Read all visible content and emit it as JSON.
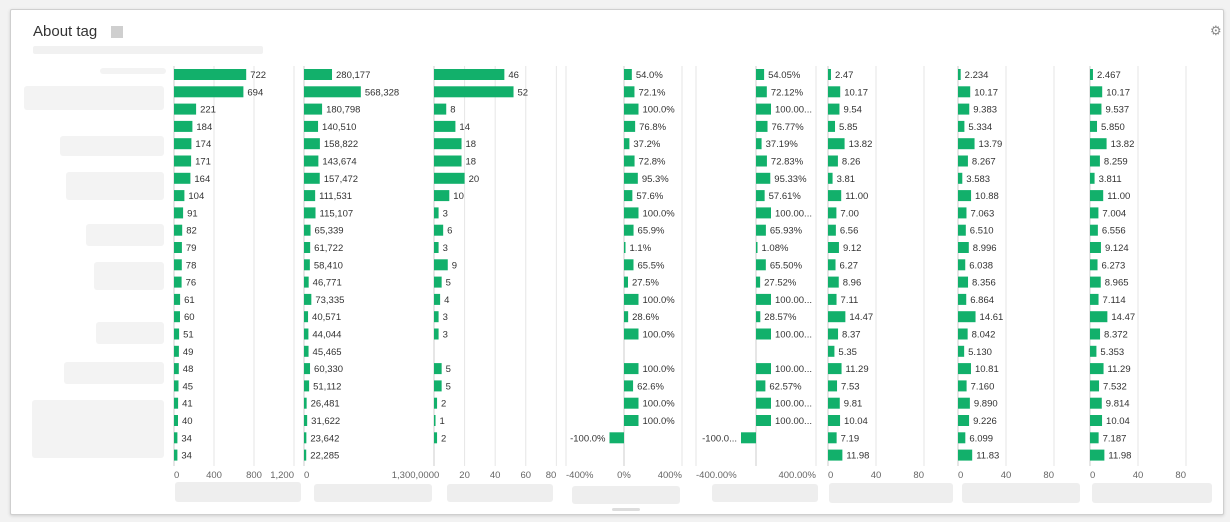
{
  "header": {
    "title": "About tag",
    "settings_icon": "gear-icon"
  },
  "chart_data": {
    "type": "bar",
    "orientation": "horizontal",
    "bar_color": "#12b06b",
    "grid": true,
    "columns": [
      {
        "ticks": [
          "0",
          "400",
          "800",
          "1,200"
        ],
        "range": [
          0,
          1200
        ],
        "values": [
          722,
          694,
          221,
          184,
          174,
          171,
          164,
          104,
          91,
          82,
          79,
          78,
          76,
          61,
          60,
          51,
          49,
          48,
          45,
          41,
          40,
          34,
          34
        ],
        "labels": [
          "722",
          "694",
          "221",
          "184",
          "174",
          "171",
          "164",
          "104",
          "91",
          "82",
          "79",
          "78",
          "76",
          "61",
          "60",
          "51",
          "49",
          "48",
          "45",
          "41",
          "40",
          "34",
          "34"
        ]
      },
      {
        "ticks": [
          "0",
          "1,300,000"
        ],
        "range": [
          0,
          1300000
        ],
        "values": [
          280177,
          568328,
          180798,
          140510,
          158822,
          143674,
          157472,
          111531,
          115107,
          65339,
          61722,
          58410,
          46771,
          73335,
          40571,
          44044,
          45465,
          60330,
          51112,
          26481,
          31622,
          23642,
          22285
        ],
        "labels": [
          "280,177",
          "568,328",
          "180,798",
          "140,510",
          "158,822",
          "143,674",
          "157,472",
          "111,531",
          "115,107",
          "65,339",
          "61,722",
          "58,410",
          "46,771",
          "73,335",
          "40,571",
          "44,044",
          "45,465",
          "60,330",
          "51,112",
          "26,481",
          "31,622",
          "23,642",
          "22,285"
        ]
      },
      {
        "ticks": [
          "0",
          "20",
          "40",
          "60",
          "80"
        ],
        "range": [
          0,
          85
        ],
        "values": [
          46,
          52,
          8,
          14,
          18,
          18,
          20,
          10,
          3,
          6,
          3,
          9,
          5,
          4,
          3,
          3,
          null,
          5,
          5,
          2,
          1,
          2,
          null
        ],
        "labels": [
          "46",
          "52",
          "8",
          "14",
          "18",
          "18",
          "20",
          "10",
          "3",
          "6",
          "3",
          "9",
          "5",
          "4",
          "3",
          "3",
          "",
          "5",
          "5",
          "2",
          "1",
          "2",
          ""
        ]
      },
      {
        "ticks": [
          "-400%",
          "0%",
          "400%"
        ],
        "range": [
          -400,
          400
        ],
        "values": [
          54.0,
          72.1,
          100.0,
          76.8,
          37.2,
          72.8,
          95.3,
          57.6,
          100.0,
          65.9,
          1.1,
          65.5,
          27.5,
          100.0,
          28.6,
          100.0,
          null,
          100.0,
          62.6,
          100.0,
          100.0,
          -100.0,
          null
        ],
        "labels": [
          "54.0%",
          "72.1%",
          "100.0%",
          "76.8%",
          "37.2%",
          "72.8%",
          "95.3%",
          "57.6%",
          "100.0%",
          "65.9%",
          "1.1%",
          "65.5%",
          "27.5%",
          "100.0%",
          "28.6%",
          "100.0%",
          "",
          "100.0%",
          "62.6%",
          "100.0%",
          "100.0%",
          "-100.0%",
          ""
        ]
      },
      {
        "ticks": [
          "-400.00%",
          "400.00%"
        ],
        "range": [
          -400,
          400
        ],
        "values": [
          54.05,
          72.12,
          100.0,
          76.77,
          37.19,
          72.83,
          95.33,
          57.61,
          100.0,
          65.93,
          1.08,
          65.5,
          27.52,
          100.0,
          28.57,
          100.0,
          null,
          100.0,
          62.57,
          100.0,
          100.0,
          -100.0,
          null
        ],
        "labels": [
          "54.05%",
          "72.12%",
          "100.00...",
          "76.77%",
          "37.19%",
          "72.83%",
          "95.33%",
          "57.61%",
          "100.00...",
          "65.93%",
          "1.08%",
          "65.50%",
          "27.52%",
          "100.00...",
          "28.57%",
          "100.00...",
          "",
          "100.00...",
          "62.57%",
          "100.00...",
          "100.00...",
          "-100.0...",
          ""
        ]
      },
      {
        "ticks": [
          "0",
          "40",
          "80"
        ],
        "range": [
          0,
          100
        ],
        "values": [
          2.47,
          10.17,
          9.54,
          5.85,
          13.82,
          8.26,
          3.81,
          11.0,
          7.0,
          6.56,
          9.12,
          6.27,
          8.96,
          7.11,
          14.47,
          8.37,
          5.35,
          11.29,
          7.53,
          9.81,
          10.04,
          7.19,
          11.98
        ],
        "labels": [
          "2.47",
          "10.17",
          "9.54",
          "5.85",
          "13.82",
          "8.26",
          "3.81",
          "11.00",
          "7.00",
          "6.56",
          "9.12",
          "6.27",
          "8.96",
          "7.11",
          "14.47",
          "8.37",
          "5.35",
          "11.29",
          "7.53",
          "9.81",
          "10.04",
          "7.19",
          "11.98"
        ]
      },
      {
        "ticks": [
          "0",
          "40",
          "80"
        ],
        "range": [
          0,
          100
        ],
        "values": [
          2.234,
          10.17,
          9.383,
          5.334,
          13.79,
          8.267,
          3.583,
          10.88,
          7.063,
          6.51,
          8.996,
          6.038,
          8.356,
          6.864,
          14.61,
          8.042,
          5.13,
          10.81,
          7.16,
          9.89,
          9.226,
          6.099,
          11.83
        ],
        "labels": [
          "2.234",
          "10.17",
          "9.383",
          "5.334",
          "13.79",
          "8.267",
          "3.583",
          "10.88",
          "7.063",
          "6.510",
          "8.996",
          "6.038",
          "8.356",
          "6.864",
          "14.61",
          "8.042",
          "5.130",
          "10.81",
          "7.160",
          "9.890",
          "9.226",
          "6.099",
          "11.83"
        ]
      },
      {
        "ticks": [
          "0",
          "40",
          "80"
        ],
        "range": [
          0,
          100
        ],
        "values": [
          2.467,
          10.17,
          9.537,
          5.85,
          13.82,
          8.259,
          3.811,
          11.0,
          7.004,
          6.556,
          9.124,
          6.273,
          8.965,
          7.114,
          14.47,
          8.372,
          5.353,
          11.29,
          7.532,
          9.814,
          10.04,
          7.187,
          11.98
        ],
        "labels": [
          "2.467",
          "10.17",
          "9.537",
          "5.850",
          "13.82",
          "8.259",
          "3.811",
          "11.00",
          "7.004",
          "6.556",
          "9.124",
          "6.273",
          "8.965",
          "7.114",
          "14.47",
          "8.372",
          "5.353",
          "11.29",
          "7.532",
          "9.814",
          "10.04",
          "7.187",
          "11.98"
        ]
      }
    ]
  }
}
